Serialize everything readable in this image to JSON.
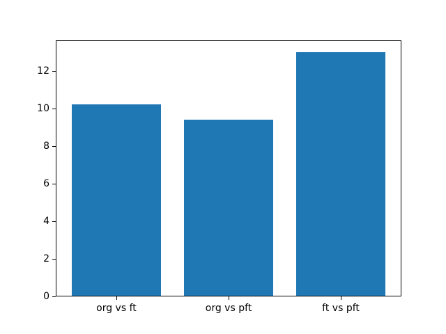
{
  "figure": {
    "background_color": "#ffffff",
    "bar_color": "#1f77b4",
    "spine_color": "#000000",
    "tick_color": "#000000",
    "tick_label_color": "#000000"
  },
  "chart_data": {
    "type": "bar",
    "categories": [
      "org vs ft",
      "org vs pft",
      "ft vs pft"
    ],
    "values": [
      10.2,
      9.4,
      13.0
    ],
    "title": "",
    "xlabel": "",
    "ylabel": "",
    "ylim": [
      0,
      13.65
    ],
    "yticks": [
      0,
      2,
      4,
      6,
      8,
      10,
      12
    ],
    "bar_width_fraction": 0.8,
    "x_margin_fraction": 0.05,
    "grid": false,
    "legend_position": "none"
  }
}
